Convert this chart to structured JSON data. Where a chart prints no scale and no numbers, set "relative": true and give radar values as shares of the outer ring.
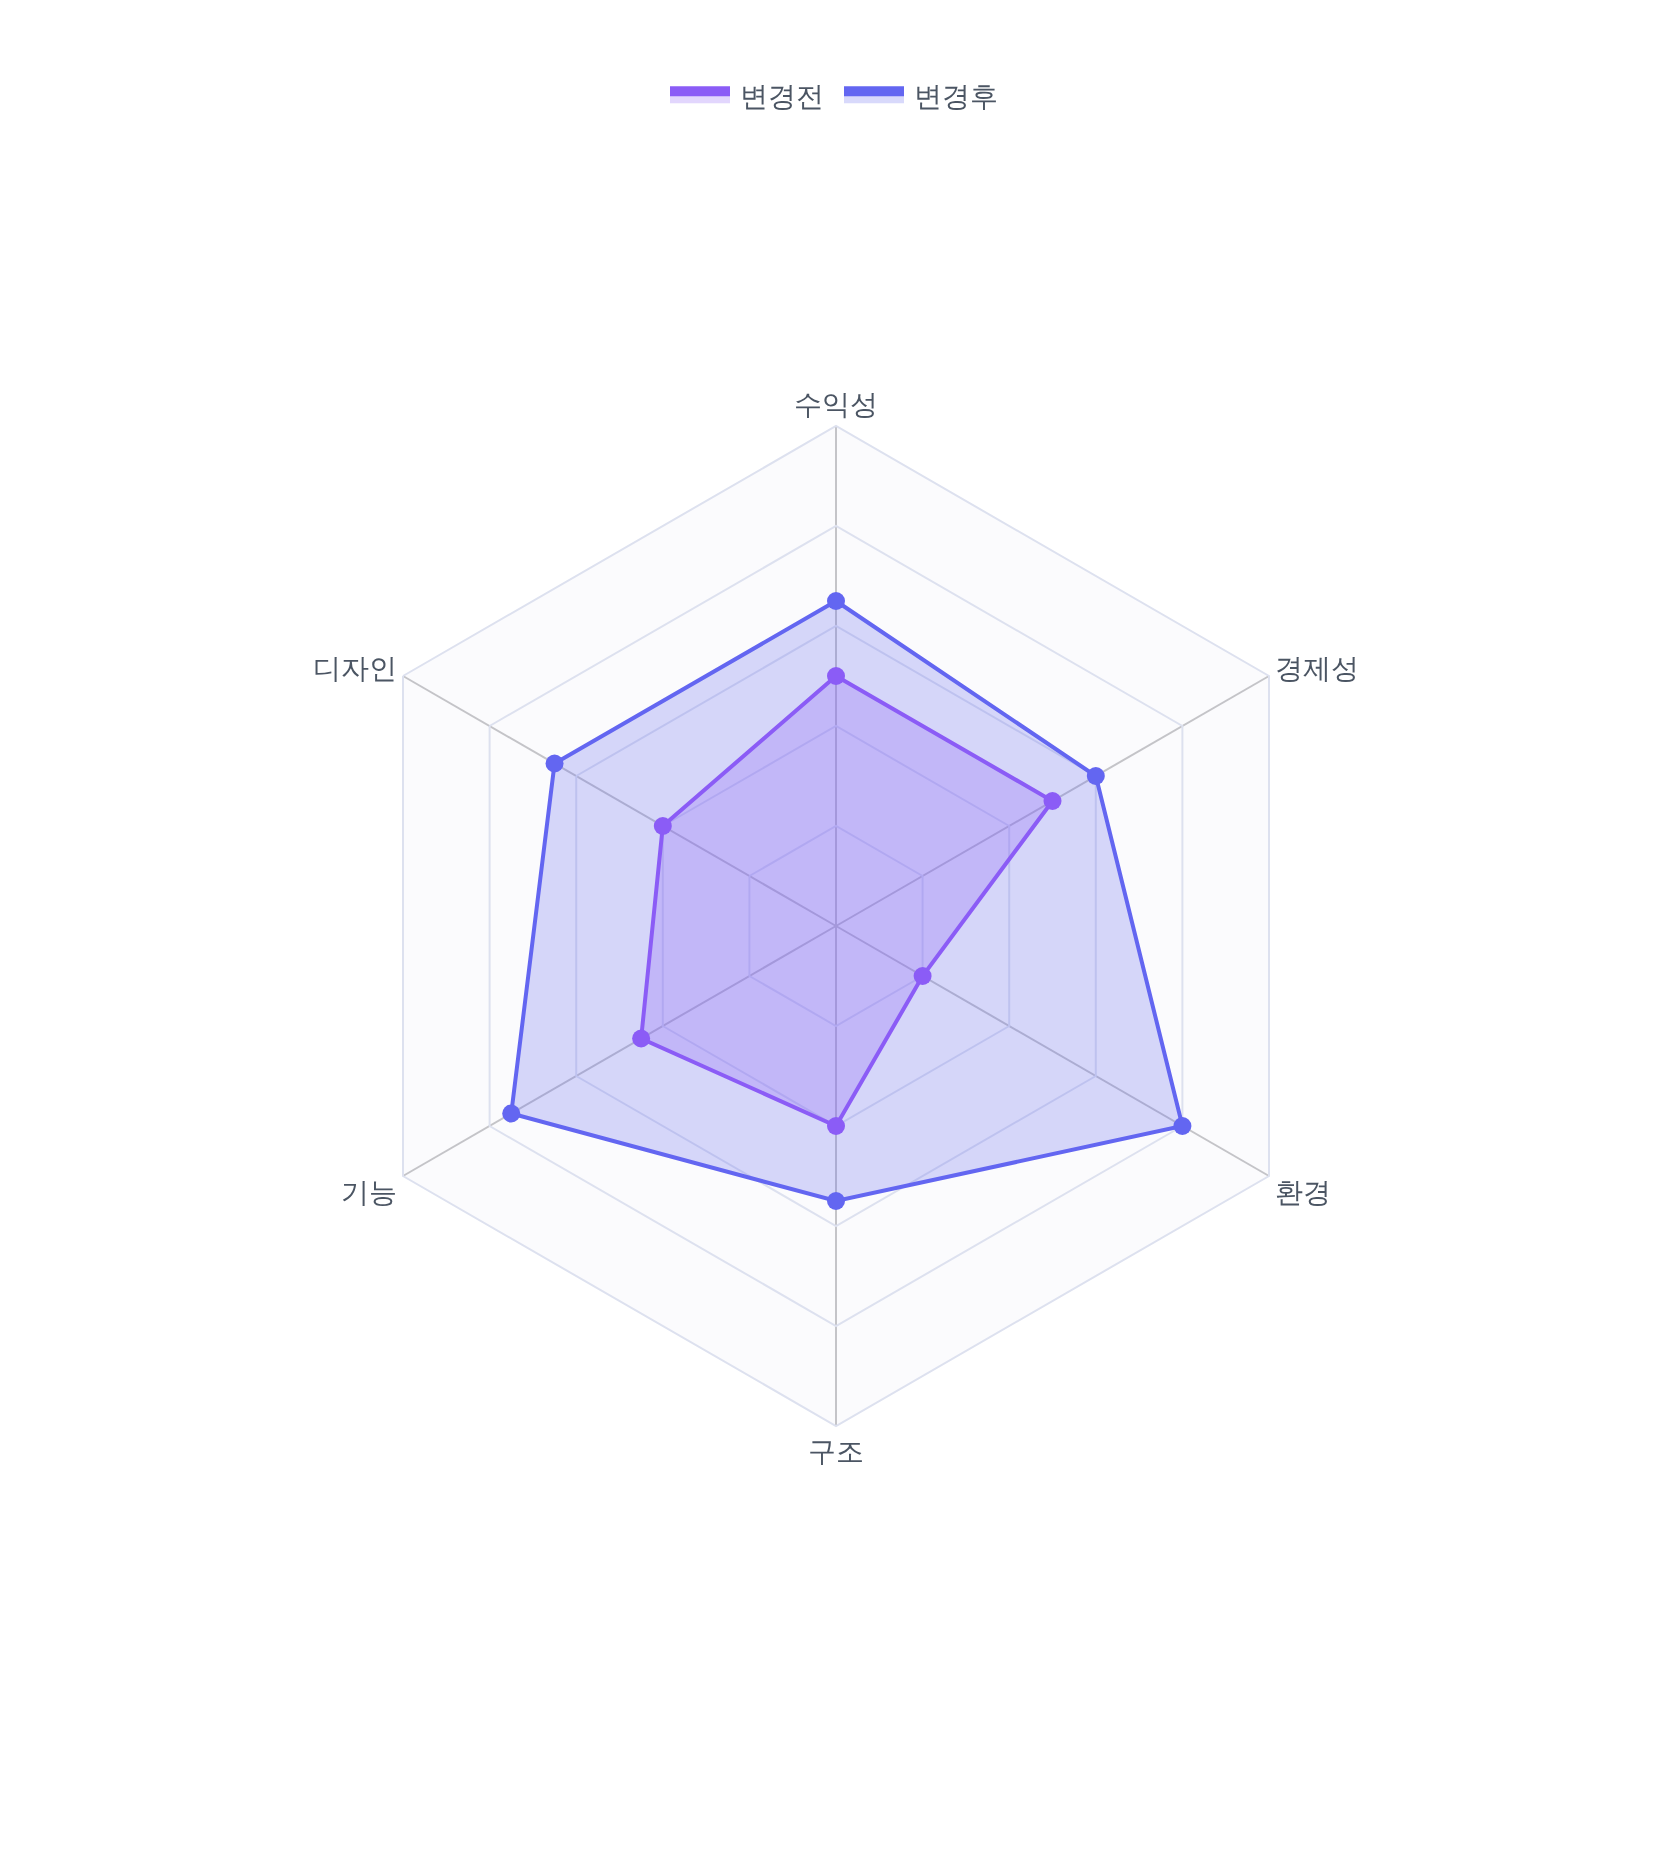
{
  "chart_data": {
    "type": "radar",
    "relative": true,
    "categories": [
      "수익성",
      "경제성",
      "환경",
      "구조",
      "기능",
      "디자인"
    ],
    "series": [
      {
        "name": "변경전",
        "color": "#8b5cf6",
        "values": [
          0.5,
          0.5,
          0.2,
          0.4,
          0.45,
          0.4
        ]
      },
      {
        "name": "변경후",
        "color": "#6366f1",
        "values": [
          0.65,
          0.6,
          0.8,
          0.55,
          0.75,
          0.65
        ]
      }
    ],
    "legend": "top",
    "grid": true,
    "marker": "circle",
    "line_style": "solid"
  }
}
